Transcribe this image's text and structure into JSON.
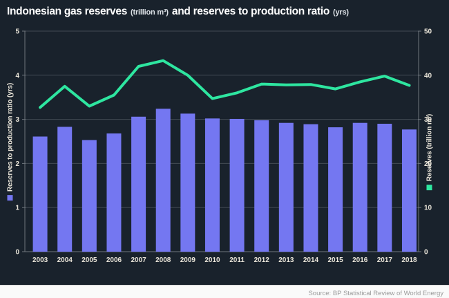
{
  "title": {
    "part1": "Indonesian gas reserves",
    "unit1": "(trillion m³)",
    "part2": "and reserves to production ratio",
    "unit2": "(yrs)"
  },
  "source": "Source: BP Statistical Review of World Energy",
  "left_axis": {
    "label": "Reserves to production ratio (yrs)",
    "min": 0,
    "max": 5,
    "ticks": [
      0,
      1,
      2,
      3,
      4,
      5
    ],
    "swatch_color": "#7477f1"
  },
  "right_axis": {
    "label": "Reserves (trillion m³)",
    "min": 0,
    "max": 50,
    "ticks": [
      0,
      10,
      20,
      30,
      40,
      50
    ],
    "swatch_color": "#2ee6a0"
  },
  "chart_data": {
    "type": "bar",
    "title": "Indonesian gas reserves (trillion m³) and reserves to production ratio (yrs)",
    "categories": [
      "2003",
      "2004",
      "2005",
      "2006",
      "2007",
      "2008",
      "2009",
      "2010",
      "2011",
      "2012",
      "2013",
      "2014",
      "2015",
      "2016",
      "2017",
      "2018"
    ],
    "series": [
      {
        "name": "Reserves to production ratio (yrs)",
        "type": "bar",
        "axis": "left",
        "color": "#7477f1",
        "values": [
          2.61,
          2.83,
          2.53,
          2.68,
          3.06,
          3.24,
          3.13,
          3.02,
          3.01,
          2.98,
          2.92,
          2.89,
          2.82,
          2.92,
          2.9,
          2.77
        ]
      },
      {
        "name": "Reserves (trillion m³)",
        "type": "line",
        "axis": "right",
        "color": "#2ee6a0",
        "values": [
          32.7,
          37.5,
          33.0,
          35.5,
          42.0,
          43.3,
          40.0,
          34.7,
          36.0,
          38.0,
          37.8,
          37.9,
          36.9,
          38.5,
          39.8,
          37.7
        ]
      }
    ],
    "left_ylim": [
      0,
      5
    ],
    "right_ylim": [
      0,
      50
    ],
    "grid": true,
    "legend_position": "axis-labels"
  },
  "colors": {
    "background": "#19222c",
    "bar": "#7477f1",
    "line": "#2ee6a0",
    "grid": "#434b54",
    "axis": "#6e757d",
    "tick_text": "#ebe6da",
    "title_text": "#ffffff",
    "source_bg": "#fafafa",
    "source_text": "#9a9a9a"
  }
}
